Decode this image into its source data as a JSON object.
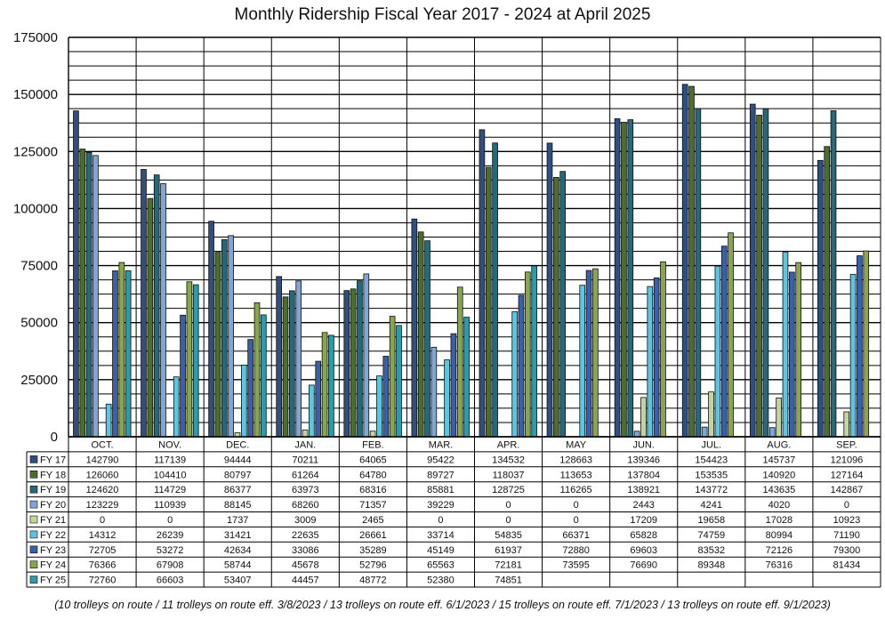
{
  "chart_data": {
    "type": "bar",
    "title": "Monthly Ridership Fiscal Year 2017 - 2024 at April 2025",
    "footnote": "(10 trolleys on route / 11 trolleys on route eff. 3/8/2023 / 13 trolleys on route eff. 6/1/2023 / 15 trolleys on route eff. 7/1/2023 / 13 trolleys on route eff. 9/1/2023)",
    "categories": [
      "OCT.",
      "NOV.",
      "DEC.",
      "JAN.",
      "FEB.",
      "MAR.",
      "APR.",
      "MAY",
      "JUN.",
      "JUL.",
      "AUG.",
      "SEP."
    ],
    "ylim": [
      0,
      175000
    ],
    "yticks": [
      0,
      25000,
      50000,
      75000,
      100000,
      125000,
      150000,
      175000
    ],
    "ytick_labels": [
      "0",
      "25000",
      "50000",
      "75000",
      "100000",
      "125000",
      "150000",
      "175000"
    ],
    "grid": true,
    "legend": "data-table",
    "series": [
      {
        "name": "FY 17",
        "color": "#2e4f80",
        "values": [
          142790,
          117139,
          94444,
          70211,
          64065,
          95422,
          134532,
          128663,
          139346,
          154423,
          145737,
          121096
        ]
      },
      {
        "name": "FY 18",
        "color": "#4d6e2a",
        "values": [
          126060,
          104410,
          80797,
          61264,
          64780,
          89727,
          118037,
          113653,
          137804,
          153535,
          140920,
          127164
        ]
      },
      {
        "name": "FY 19",
        "color": "#286878",
        "values": [
          124620,
          114729,
          86377,
          63973,
          68316,
          85881,
          128725,
          116265,
          138921,
          143772,
          143635,
          142867
        ]
      },
      {
        "name": "FY 20",
        "color": "#7fa6d6",
        "values": [
          123229,
          110939,
          88145,
          68260,
          71357,
          39229,
          0,
          0,
          2443,
          4241,
          4020,
          0
        ]
      },
      {
        "name": "FY 21",
        "color": "#c2d69a",
        "values": [
          0,
          0,
          1737,
          3009,
          2465,
          0,
          0,
          0,
          17209,
          19658,
          17028,
          10923
        ]
      },
      {
        "name": "FY 22",
        "color": "#5fc4dc",
        "values": [
          14312,
          26239,
          31421,
          22635,
          26661,
          33714,
          54835,
          66371,
          65828,
          74759,
          80994,
          71190
        ]
      },
      {
        "name": "FY 23",
        "color": "#3b5fa8",
        "values": [
          72705,
          53272,
          42634,
          33086,
          35289,
          45149,
          61937,
          72880,
          69603,
          83532,
          72126,
          79300
        ]
      },
      {
        "name": "FY 24",
        "color": "#8aa64a",
        "values": [
          76366,
          67908,
          58744,
          45678,
          52796,
          65563,
          72181,
          73595,
          76690,
          89348,
          76316,
          81434
        ]
      },
      {
        "name": "FY 25",
        "color": "#2f9aa8",
        "values": [
          72760,
          66603,
          53407,
          44457,
          48772,
          52380,
          74851,
          null,
          null,
          null,
          null,
          null
        ]
      }
    ]
  }
}
